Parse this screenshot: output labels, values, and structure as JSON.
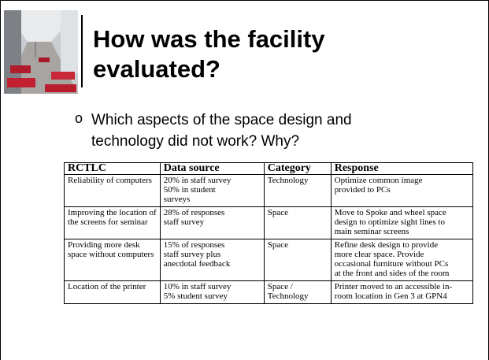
{
  "title": "How was the facility evaluated?",
  "bullet": "Which aspects of the space design and technology did not work? Why?",
  "table": {
    "header": [
      "RCTLC",
      "Data source",
      "Category",
      "Response"
    ],
    "rows": [
      [
        [
          "Reliability of computers"
        ],
        [
          "20% in staff survey",
          "50% in student",
          "surveys"
        ],
        [
          "Technology"
        ],
        [
          "Optimize common image",
          "provided to PCs"
        ]
      ],
      [
        [
          "Improving the location of",
          "the screens for seminar"
        ],
        [
          "28% of responses",
          "staff survey"
        ],
        [
          "Space"
        ],
        [
          "Move to Spoke and wheel space",
          "design to optimize sight lines to",
          "main seminar screens"
        ]
      ],
      [
        [
          "Providing more desk",
          "space without computers"
        ],
        [
          "15% of responses",
          "staff survey plus",
          "anecdotal feedback"
        ],
        [
          "Space"
        ],
        [
          "Refine desk design to provide",
          "more clear space.  Provide",
          "occasional furniture without PCs",
          "at the front and sides of the room"
        ]
      ],
      [
        [
          "Location of the printer"
        ],
        [
          "10%  in staff survey",
          "5%  student survey"
        ],
        [
          "Space /",
          "Technology"
        ],
        [
          "Printer moved to an accessible in-",
          "room location in Gen 3 at GPN4"
        ]
      ]
    ]
  }
}
